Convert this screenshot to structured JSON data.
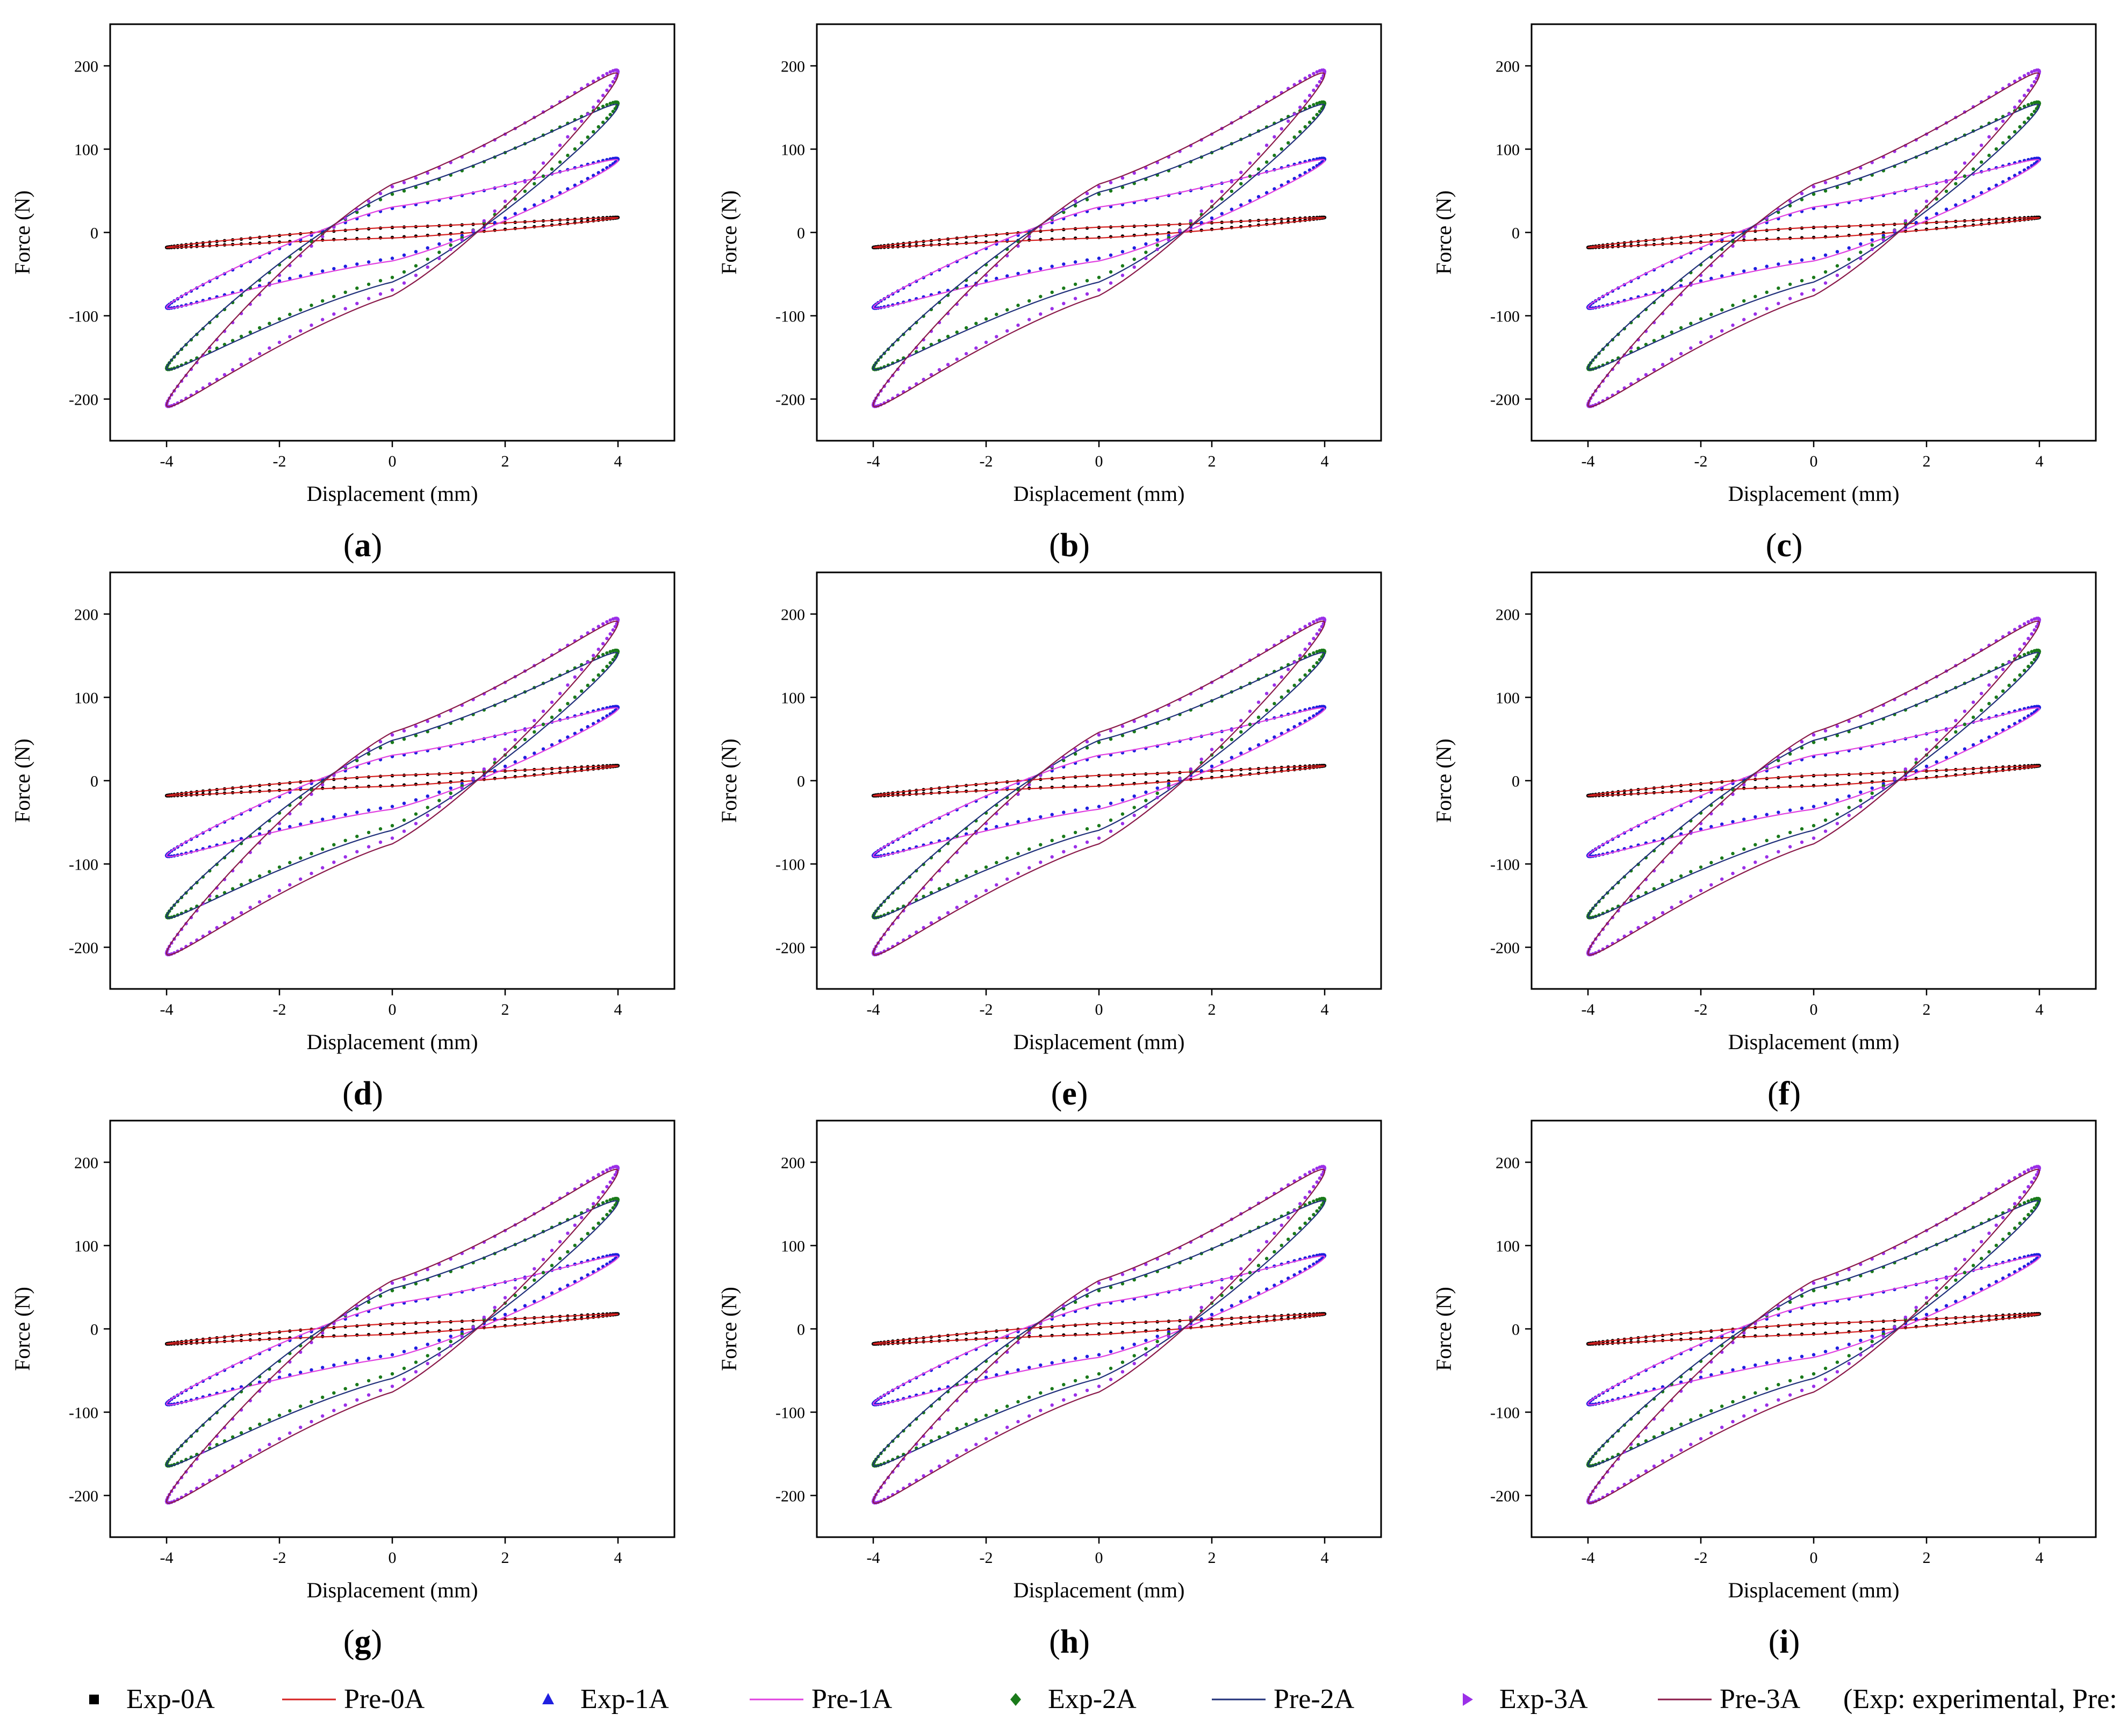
{
  "figure": {
    "xlabel": "Displacement (mm)",
    "ylabel": "Force (N)",
    "x_ticks": [
      -4,
      -2,
      0,
      2,
      4
    ],
    "y_ticks": [
      -200,
      -100,
      0,
      100,
      200
    ],
    "xlim": [
      -5,
      5
    ],
    "ylim": [
      -250,
      250
    ]
  },
  "panels": [
    {
      "id": "a",
      "label": "(a)",
      "letter": "a"
    },
    {
      "id": "b",
      "label": "(b)",
      "letter": "b"
    },
    {
      "id": "c",
      "label": "(c)",
      "letter": "c"
    },
    {
      "id": "d",
      "label": "(d)",
      "letter": "d"
    },
    {
      "id": "e",
      "label": "(e)",
      "letter": "e"
    },
    {
      "id": "f",
      "label": "(f)",
      "letter": "f"
    },
    {
      "id": "g",
      "label": "(g)",
      "letter": "g"
    },
    {
      "id": "h",
      "label": "(h)",
      "letter": "h"
    },
    {
      "id": "i",
      "label": "(i)",
      "letter": "i"
    }
  ],
  "legend": {
    "entries": [
      {
        "label": "Exp-0A",
        "kind": "marker",
        "marker": "square",
        "color": "#000000"
      },
      {
        "label": "Pre-0A",
        "kind": "line",
        "color": "#d62020"
      },
      {
        "label": "Exp-1A",
        "kind": "marker",
        "marker": "triangle",
        "color": "#1f1fe0"
      },
      {
        "label": "Pre-1A",
        "kind": "line",
        "color": "#e040e0"
      },
      {
        "label": "Exp-2A",
        "kind": "marker",
        "marker": "diamond",
        "color": "#1a7a1a"
      },
      {
        "label": "Pre-2A",
        "kind": "line",
        "color": "#20307a"
      },
      {
        "label": "Exp-3A",
        "kind": "marker",
        "marker": "right-triangle",
        "color": "#9b2fe8"
      },
      {
        "label": "Pre-3A",
        "kind": "line",
        "color": "#8a1a4a"
      }
    ],
    "note": "(Exp: experimental, Pre: predicted)"
  },
  "chart_data": {
    "type": "line",
    "title": "",
    "xlabel": "Displacement (mm)",
    "ylabel": "Force (N)",
    "xlim": [
      -5,
      5
    ],
    "ylim": [
      -250,
      250
    ],
    "grid": false,
    "note": "Same hysteresis loops appear in each of panels (a)-(i); approximate loop parameters per series",
    "series": [
      {
        "name": "Exp-0A / Pre-0A",
        "amplitude_mm": 4,
        "peak_force_N": 18,
        "min_force_N": -18,
        "loop_half_width_N": 6,
        "exp_color": "#000000",
        "pre_color": "#d62020"
      },
      {
        "name": "Exp-1A / Pre-1A",
        "amplitude_mm": 4,
        "peak_force_N": 88,
        "min_force_N": -90,
        "loop_half_width_N": 30,
        "exp_color": "#1f1fe0",
        "pre_color": "#e040e0"
      },
      {
        "name": "Exp-2A / Pre-2A",
        "amplitude_mm": 4,
        "peak_force_N": 155,
        "min_force_N": -163,
        "loop_half_width_N": 50,
        "exp_color": "#1a7a1a",
        "pre_color": "#20307a"
      },
      {
        "name": "Exp-3A / Pre-3A",
        "amplitude_mm": 4,
        "peak_force_N": 193,
        "min_force_N": -207,
        "loop_half_width_N": 62,
        "exp_color": "#9b2fe8",
        "pre_color": "#8a1a4a"
      }
    ]
  }
}
